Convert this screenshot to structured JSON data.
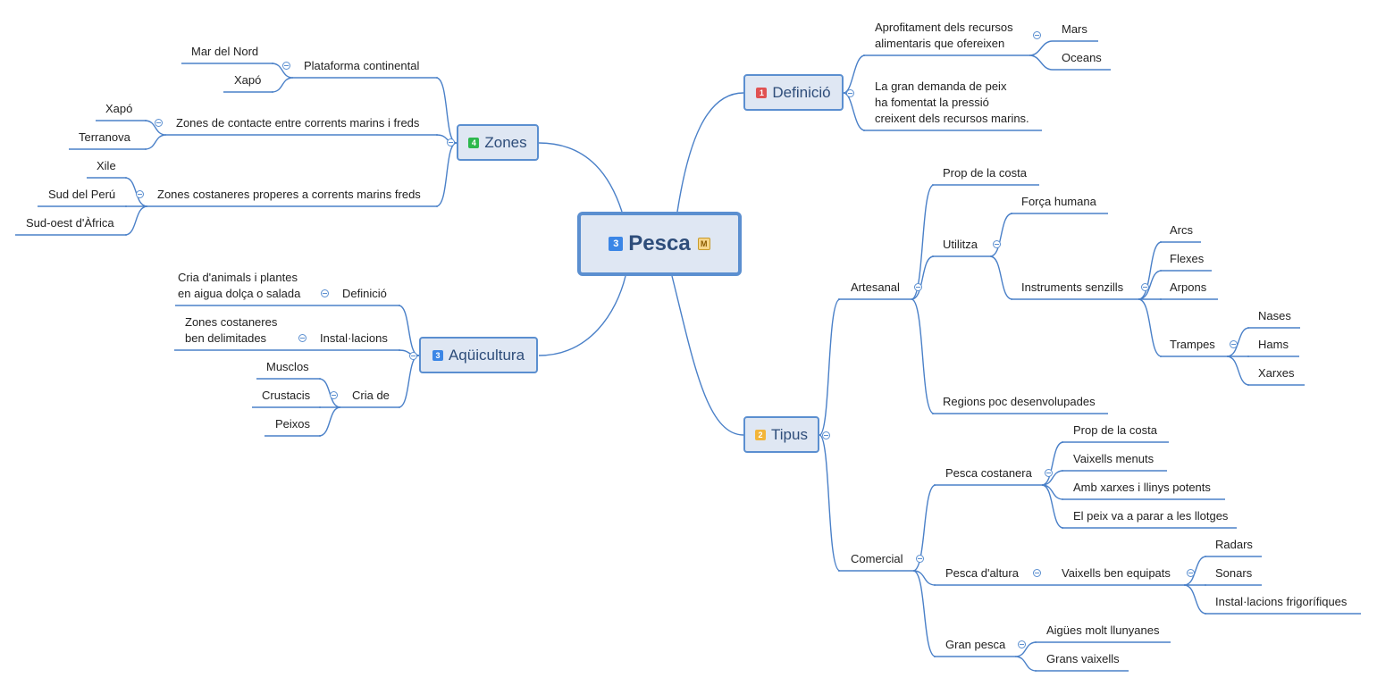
{
  "central": {
    "badge": "3",
    "label": "Pesca",
    "marker": "M"
  },
  "colors": {
    "line": "#4a80c8",
    "node_bg": "#dfe7f3",
    "node_border": "#5b8fd0",
    "badge_red": "#e05252",
    "badge_orange": "#f2b53a",
    "badge_green": "#2db84d",
    "badge_blue": "#3b86e6"
  },
  "definicio": {
    "badge": "1",
    "label": "Definició",
    "item1_line1": "Aprofitament dels recursos",
    "item1_line2": "alimentaris que ofereixen",
    "mars": "Mars",
    "oceans": "Oceans",
    "item2_line1": "La gran demanda de peix",
    "item2_line2": "ha fomentat la pressió",
    "item2_line3": "creixent dels recursos marins."
  },
  "tipus": {
    "badge": "2",
    "label": "Tipus",
    "artesanal": {
      "label": "Artesanal",
      "prop": "Prop de la costa",
      "utilitza": "Utilitza",
      "forca": "Força humana",
      "instruments": "Instruments senzills",
      "arcs": "Arcs",
      "flexes": "Flexes",
      "arpons": "Arpons",
      "trampes": "Trampes",
      "nases": "Nases",
      "hams": "Hams",
      "xarxes": "Xarxes",
      "regions": "Regions poc desenvolupades"
    },
    "comercial": {
      "label": "Comercial",
      "costanera": "Pesca costanera",
      "c_prop": "Prop de la costa",
      "c_vaixells": "Vaixells menuts",
      "c_amb": "Amb xarxes i llinys potents",
      "c_peix": "El peix va a parar a les llotges",
      "altura": "Pesca d'altura",
      "equipats": "Vaixells ben equipats",
      "radars": "Radars",
      "sonars": "Sonars",
      "frigorifiques": "Instal·lacions frigorífiques",
      "gran": "Gran pesca",
      "aigues": "Aigües molt llunyanes",
      "grans": "Grans vaixells"
    }
  },
  "zones": {
    "badge": "4",
    "label": "Zones",
    "plataforma": "Plataforma continental",
    "mar_nord": "Mar del Nord",
    "xapo1": "Xapó",
    "contacte": "Zones de contacte entre corrents marins i freds",
    "xapo2": "Xapó",
    "terranova": "Terranova",
    "costaneres": "Zones costaneres properes a corrents marins freds",
    "xile": "Xile",
    "peru": "Sud del Perú",
    "africa": "Sud-oest d'Àfrica"
  },
  "aquicultura": {
    "badge": "3",
    "label": "Aqüicultura",
    "definicio": "Definició",
    "def_line1": "Cria d'animals i plantes",
    "def_line2": "en aigua dolça o salada",
    "installacions": "Instal·lacions",
    "inst_line1": "Zones costaneres",
    "inst_line2": "ben delimitades",
    "cria": "Cria de",
    "musclos": "Musclos",
    "crustacis": "Crustacis",
    "peixos": "Peixos"
  }
}
